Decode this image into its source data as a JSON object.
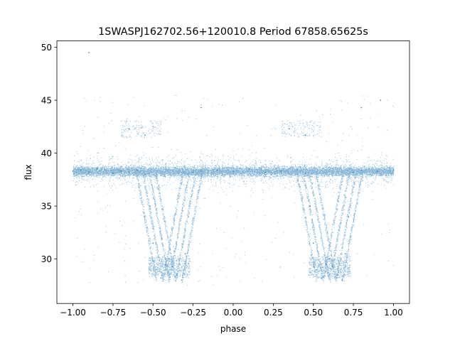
{
  "chart_data": {
    "type": "scatter",
    "title": "1SWASPJ162702.56+120010.8 Period 67858.65625s",
    "xlabel": "phase",
    "ylabel": "flux",
    "xlim": [
      -1.1,
      1.1
    ],
    "ylim": [
      25.8,
      50.6
    ],
    "x_ticks": [
      -1.0,
      -0.75,
      -0.5,
      -0.25,
      0.0,
      0.25,
      0.5,
      0.75,
      1.0
    ],
    "x_tick_labels": [
      "−1.00",
      "−0.75",
      "−0.50",
      "−0.25",
      "0.00",
      "0.25",
      "0.50",
      "0.75",
      "1.00"
    ],
    "y_ticks": [
      30,
      35,
      40,
      45,
      50
    ],
    "y_tick_labels": [
      "30",
      "35",
      "40",
      "45",
      "50"
    ],
    "grid": false,
    "marker_color": "#1f77b4",
    "x_range_data": [
      -1.0,
      1.0
    ],
    "baseline_flux": 38.3,
    "eclipse_centers": [
      -0.4,
      0.6
    ],
    "eclipse_min_flux": 28.0,
    "series": [
      {
        "points": [
          [
            -1.0,
            38.3
          ],
          [
            -0.95,
            38.4
          ],
          [
            -0.9,
            38.2
          ],
          [
            -0.85,
            38.5
          ],
          [
            -0.8,
            38.4
          ],
          [
            -0.75,
            38.1
          ],
          [
            -0.7,
            38.3
          ],
          [
            -0.65,
            38.2
          ],
          [
            -0.6,
            38.4
          ],
          [
            -0.55,
            38.0
          ],
          [
            -0.52,
            35.0
          ],
          [
            -0.5,
            31.5
          ],
          [
            -0.48,
            29.0
          ],
          [
            -0.45,
            28.2
          ],
          [
            -0.42,
            29.5
          ],
          [
            -0.4,
            30.0
          ],
          [
            -0.38,
            29.3
          ],
          [
            -0.35,
            28.5
          ],
          [
            -0.32,
            28.0
          ],
          [
            -0.3,
            30.5
          ],
          [
            -0.28,
            34.0
          ],
          [
            -0.25,
            38.2
          ],
          [
            -0.2,
            38.3
          ],
          [
            -0.1,
            38.4
          ],
          [
            0.0,
            38.3
          ],
          [
            0.1,
            38.5
          ],
          [
            0.2,
            38.2
          ],
          [
            0.3,
            38.3
          ],
          [
            0.4,
            38.4
          ],
          [
            0.45,
            38.1
          ],
          [
            0.48,
            35.0
          ],
          [
            0.5,
            31.5
          ],
          [
            0.52,
            29.0
          ],
          [
            0.55,
            28.2
          ],
          [
            0.58,
            29.5
          ],
          [
            0.6,
            30.0
          ],
          [
            0.62,
            29.3
          ],
          [
            0.65,
            28.5
          ],
          [
            0.68,
            28.0
          ],
          [
            0.7,
            30.5
          ],
          [
            0.72,
            34.0
          ],
          [
            0.75,
            38.2
          ],
          [
            0.8,
            38.4
          ],
          [
            0.9,
            38.3
          ],
          [
            1.0,
            38.4
          ],
          [
            -0.65,
            42.3
          ],
          [
            -0.55,
            41.7
          ],
          [
            0.35,
            42.3
          ],
          [
            0.45,
            41.7
          ],
          [
            -0.2,
            44.3
          ],
          [
            0.8,
            44.3
          ],
          [
            -0.9,
            49.5
          ],
          [
            0.92,
            45.0
          ]
        ]
      }
    ]
  }
}
